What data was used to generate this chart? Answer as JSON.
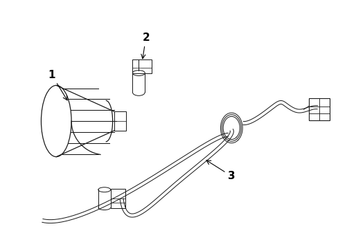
{
  "background_color": "#ffffff",
  "line_color": "#1a1a1a",
  "label_color": "#000000",
  "lw": 0.9
}
